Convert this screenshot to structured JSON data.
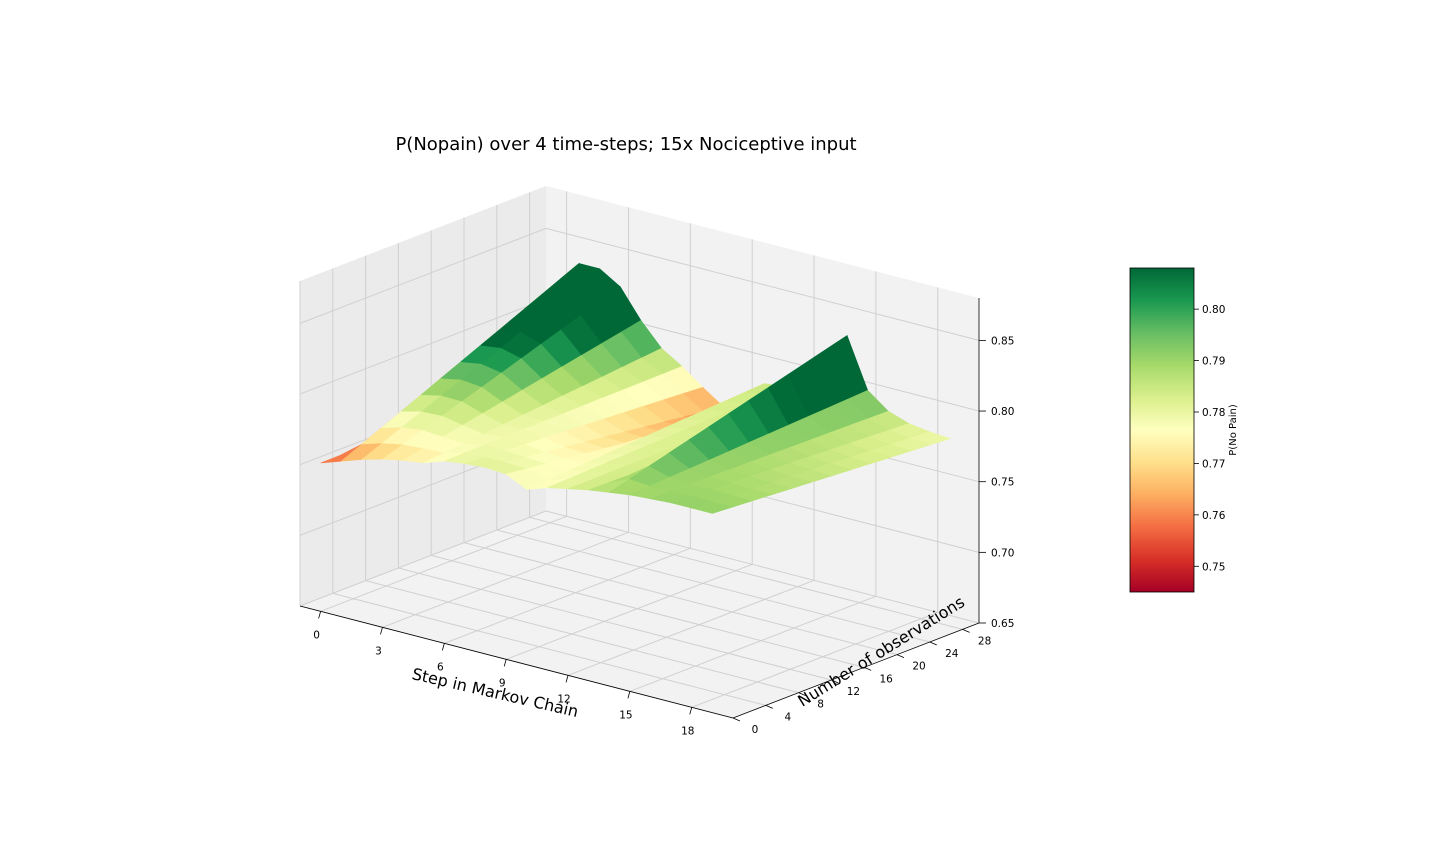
{
  "chart_data": {
    "type": "surface3d",
    "title": "P(Nopain) over 4 time-steps; 15x Nociceptive input",
    "xlabel": "Step in Markov Chain",
    "ylabel": "Number of observations",
    "zlabel": "",
    "x_ticks": [
      "0",
      "3",
      "6",
      "9",
      "12",
      "15",
      "18"
    ],
    "y_ticks": [
      "0",
      "4",
      "8",
      "12",
      "16",
      "20",
      "24",
      "28"
    ],
    "z_ticks": [
      "0.65",
      "0.70",
      "0.75",
      "0.80",
      "0.85"
    ],
    "xlim": [
      -1,
      20
    ],
    "ylim": [
      0,
      30
    ],
    "zlim": [
      0.65,
      0.88
    ],
    "grid": true,
    "colormap": "RdYlGn",
    "colorbar": {
      "label": "P(No Pain)",
      "ticks": [
        "0.75",
        "0.76",
        "0.77",
        "0.78",
        "0.79",
        "0.80"
      ],
      "range": [
        0.745,
        0.808
      ],
      "colors": [
        "#a50026",
        "#d73027",
        "#f46d43",
        "#fdae61",
        "#fee08b",
        "#ffffbf",
        "#d9ef8b",
        "#a6d96a",
        "#66bd63",
        "#1a9850",
        "#006837"
      ]
    },
    "surface": {
      "x": [
        0,
        1,
        2,
        3,
        4,
        5,
        6,
        7,
        8,
        9,
        10,
        11,
        12,
        13,
        14,
        15,
        16,
        17,
        18,
        19
      ],
      "y_range": [
        0,
        29
      ],
      "series": [
        {
          "y": 0,
          "z": [
            0.755,
            0.76,
            0.765,
            0.769,
            0.772,
            0.774,
            0.779,
            0.781,
            0.782,
            0.781,
            0.774,
            0.779,
            0.782,
            0.785,
            0.787,
            0.789,
            0.79,
            0.791,
            0.791,
            0.791
          ]
        },
        {
          "y": 29,
          "z": [
            0.755,
            0.835,
            0.835,
            0.826,
            0.806,
            0.79,
            0.781,
            0.77,
            0.76,
            0.76,
            0.784,
            0.785,
            0.783,
            0.781,
            0.833,
            0.798,
            0.787,
            0.782,
            0.78,
            0.779
          ]
        }
      ]
    }
  }
}
